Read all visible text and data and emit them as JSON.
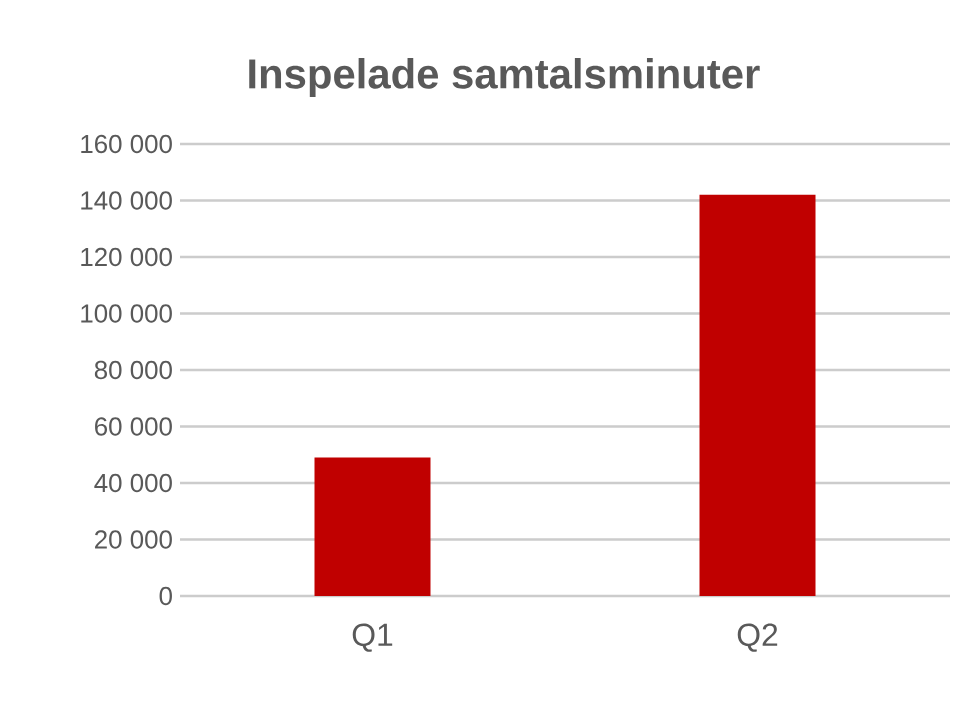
{
  "chart_data": {
    "type": "bar",
    "title": "Inspelade samtalsminuter",
    "categories": [
      "Q1",
      "Q2"
    ],
    "values": [
      49000,
      142000
    ],
    "color": "#c00000",
    "ylim": [
      0,
      160000
    ],
    "yticks": [
      {
        "value": 0,
        "label": "0"
      },
      {
        "value": 20000,
        "label": "20 000"
      },
      {
        "value": 40000,
        "label": "40 000"
      },
      {
        "value": 60000,
        "label": "60 000"
      },
      {
        "value": 80000,
        "label": "80 000"
      },
      {
        "value": 100000,
        "label": "100 000"
      },
      {
        "value": 120000,
        "label": "120 000"
      },
      {
        "value": 140000,
        "label": "140 000"
      },
      {
        "value": 160000,
        "label": "160 000"
      }
    ],
    "grid": "y"
  }
}
